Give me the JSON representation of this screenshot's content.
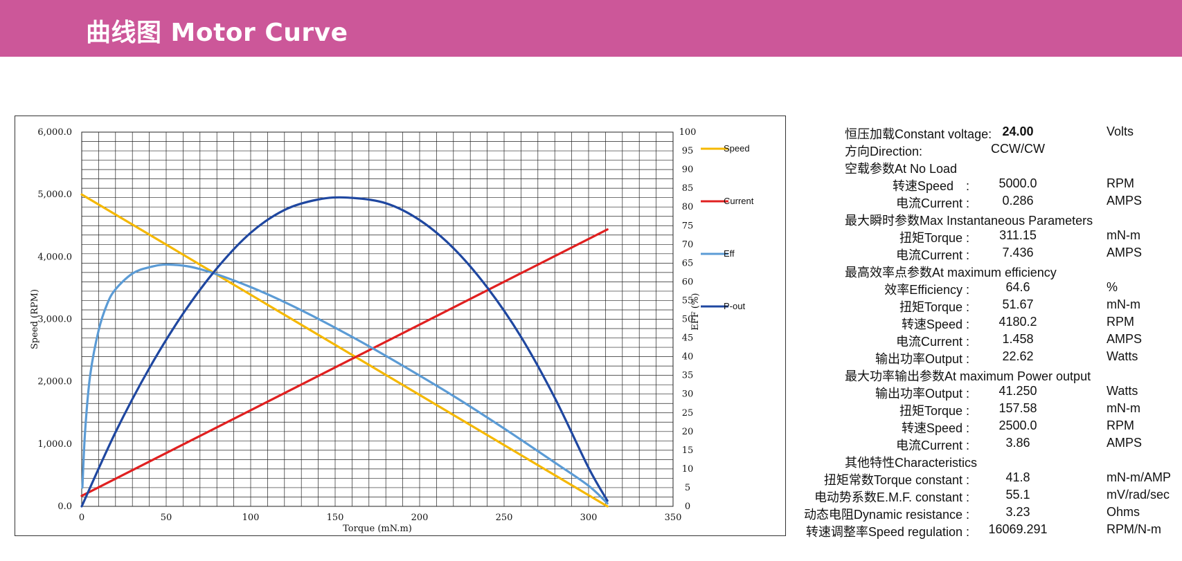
{
  "header": {
    "title": "曲线图 Motor Curve"
  },
  "colors": {
    "banner": "#cc5799",
    "speed": "#f5b800",
    "current": "#e02020",
    "eff": "#5b9bd5",
    "pout": "#1f47a0"
  },
  "chart_data": {
    "type": "line",
    "xlabel": "Torque (mN.m)",
    "ylabel": "Speed (RPM)",
    "y2label": "EFF (%)",
    "xlim": [
      0,
      350
    ],
    "xticks": [
      "0",
      "50",
      "100",
      "150",
      "200",
      "250",
      "300",
      "350"
    ],
    "ylim": [
      0,
      6000
    ],
    "yticks": [
      "0.0",
      "1,000.0",
      "2,000.0",
      "3,000.0",
      "4,000.0",
      "5,000.0",
      "6,000.0"
    ],
    "y2lim": [
      0,
      100
    ],
    "y2ticks": [
      "0",
      "5",
      "10",
      "15",
      "20",
      "25",
      "30",
      "35",
      "40",
      "45",
      "50",
      "55",
      "60",
      "65",
      "70",
      "75",
      "80",
      "85",
      "90",
      "95",
      "100"
    ],
    "grid": true,
    "legend_position": "right",
    "series": [
      {
        "name": "Speed",
        "axis": "y",
        "x": [
          0,
          311.15
        ],
        "values": [
          5000,
          0
        ]
      },
      {
        "name": "Current",
        "axis": "y2",
        "x": [
          0,
          311.15
        ],
        "values": [
          2.8,
          74
        ]
      },
      {
        "name": "Eff",
        "axis": "y2",
        "x": [
          0.4,
          2,
          5,
          10,
          15,
          20,
          30,
          40,
          51.67,
          70,
          100,
          130,
          160,
          190,
          220,
          250,
          280,
          300,
          311.15
        ],
        "values": [
          5,
          20,
          35,
          47,
          54,
          58,
          62.2,
          63.9,
          64.6,
          63.4,
          58.6,
          52.4,
          45.3,
          37.6,
          29.5,
          20.8,
          11.7,
          5.5,
          0.8
        ]
      },
      {
        "name": "P-out",
        "axis": "y2",
        "x": [
          0,
          20,
          40,
          60,
          80,
          100,
          120,
          140,
          157.58,
          180,
          200,
          220,
          240,
          260,
          280,
          300,
          311.15
        ],
        "values": [
          0,
          19.8,
          36.9,
          51.5,
          63.6,
          73.1,
          79.2,
          82.0,
          82.5,
          81.0,
          76.5,
          69.0,
          58.5,
          45.3,
          29.0,
          10.3,
          1.5
        ]
      }
    ]
  },
  "params": {
    "constant_voltage": {
      "label": "恒压加载Constant voltage:",
      "value": "24.00",
      "unit": "Volts"
    },
    "direction": {
      "label": "方向Direction:",
      "value": "CCW/CW"
    },
    "no_load": {
      "heading": "空载参数At No Load",
      "rows": [
        {
          "label": "转速Speed　:",
          "value": "5000.0",
          "unit": "RPM"
        },
        {
          "label": "电流Current  :",
          "value": "0.286",
          "unit": "AMPS"
        }
      ]
    },
    "max_instant": {
      "heading": "最大瞬时参数Max Instantaneous Parameters",
      "rows": [
        {
          "label": "扭矩Torque  :",
          "value": "311.15",
          "unit": "mN-m"
        },
        {
          "label": "电流Current  :",
          "value": "7.436",
          "unit": "AMPS"
        }
      ]
    },
    "max_eff": {
      "heading": "最高效率点参数At maximum efficiency",
      "rows": [
        {
          "label": "效率Efficiency :",
          "value": "64.6",
          "unit": "%"
        },
        {
          "label": "扭矩Torque :",
          "value": "51.67",
          "unit": "mN-m"
        },
        {
          "label": "转速Speed :",
          "value": "4180.2",
          "unit": "RPM"
        },
        {
          "label": "电流Current :",
          "value": "1.458",
          "unit": "AMPS"
        },
        {
          "label": "输出功率Output :",
          "value": "22.62",
          "unit": "Watts"
        }
      ]
    },
    "max_power": {
      "heading": "最大功率输出参数At maximum Power output",
      "rows": [
        {
          "label": "输出功率Output :",
          "value": "41.250",
          "unit": "Watts"
        },
        {
          "label": "扭矩Torque :",
          "value": "157.58",
          "unit": "mN-m"
        },
        {
          "label": "转速Speed :",
          "value": "2500.0",
          "unit": "RPM"
        },
        {
          "label": "电流Current :",
          "value": "3.86",
          "unit": "AMPS"
        }
      ]
    },
    "characteristics": {
      "heading": "其他特性Characteristics",
      "rows": [
        {
          "label": "扭矩常数Torque constant :",
          "value": "41.8",
          "unit": "mN-m/AMP"
        },
        {
          "label": "电动势系数E.M.F. constant :",
          "value": "55.1",
          "unit": "mV/rad/sec"
        },
        {
          "label": "动态电阻Dynamic resistance :",
          "value": "3.23",
          "unit": "Ohms"
        },
        {
          "label": "转速调整率Speed regulation :",
          "value": "16069.291",
          "unit": "RPM/N-m"
        }
      ]
    }
  }
}
